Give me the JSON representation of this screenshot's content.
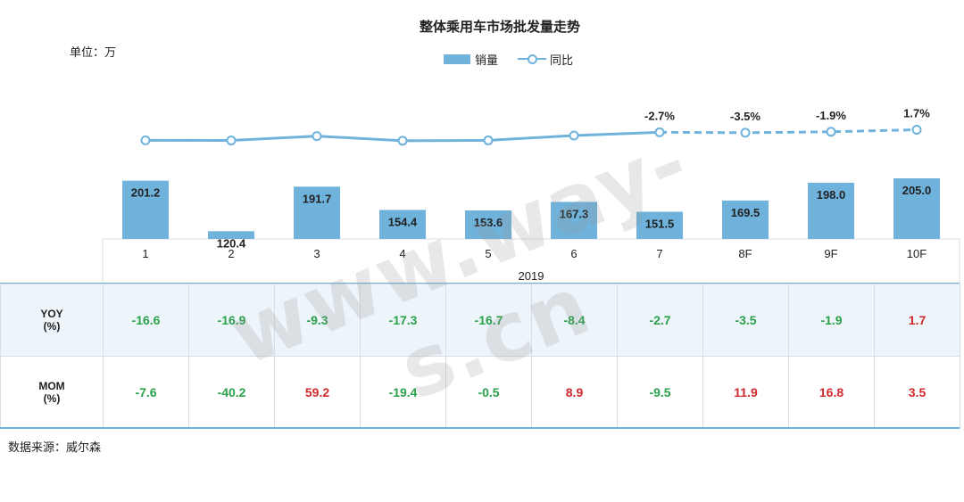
{
  "page": {
    "unit_label": "单位：万",
    "source_label": "数据来源：威尔森",
    "watermark": "www.way-s.cn"
  },
  "chart_data": {
    "type": "bar",
    "title": "整体乘用车市场批发量走势",
    "categories": [
      "1",
      "2",
      "3",
      "4",
      "5",
      "6",
      "7",
      "8F",
      "9F",
      "10F"
    ],
    "year_label": "2019",
    "legend": {
      "bar": "销量",
      "line": "同比"
    },
    "series": [
      {
        "name": "销量",
        "kind": "bar",
        "values": [
          201.2,
          120.4,
          191.7,
          154.4,
          153.6,
          167.3,
          151.5,
          169.5,
          198.0,
          205.0
        ],
        "labels": [
          "201.2",
          "120.4",
          "191.7",
          "154.4",
          "153.6",
          "167.3",
          "151.5",
          "169.5",
          "198.0",
          "205.0"
        ]
      },
      {
        "name": "同比",
        "kind": "line",
        "unit": "%",
        "values": [
          -16.6,
          -16.9,
          -9.3,
          -17.3,
          -16.7,
          -8.4,
          -2.7,
          -3.5,
          -1.9,
          1.7
        ],
        "forecast_from_index": 6,
        "point_labels": [
          "",
          "",
          "",
          "",
          "",
          "",
          "-2.7%",
          "-3.5%",
          "-1.9%",
          "1.7%"
        ]
      }
    ],
    "colors": {
      "bar": "#6fb3dd",
      "line": "#6fb3dd",
      "positive": "#d0282c",
      "negative": "#2aa14a"
    },
    "grid": false,
    "legend_position": "top-center"
  },
  "table": {
    "rows": [
      {
        "head_line1": "YOY",
        "head_line2": "(%)",
        "cells": [
          "-16.6",
          "-16.9",
          "-9.3",
          "-17.3",
          "-16.7",
          "-8.4",
          "-2.7",
          "-3.5",
          "-1.9",
          "1.7"
        ]
      },
      {
        "head_line1": "MOM",
        "head_line2": "(%)",
        "cells": [
          "-7.6",
          "-40.2",
          "59.2",
          "-19.4",
          "-0.5",
          "8.9",
          "-9.5",
          "11.9",
          "16.8",
          "3.5"
        ]
      }
    ]
  }
}
